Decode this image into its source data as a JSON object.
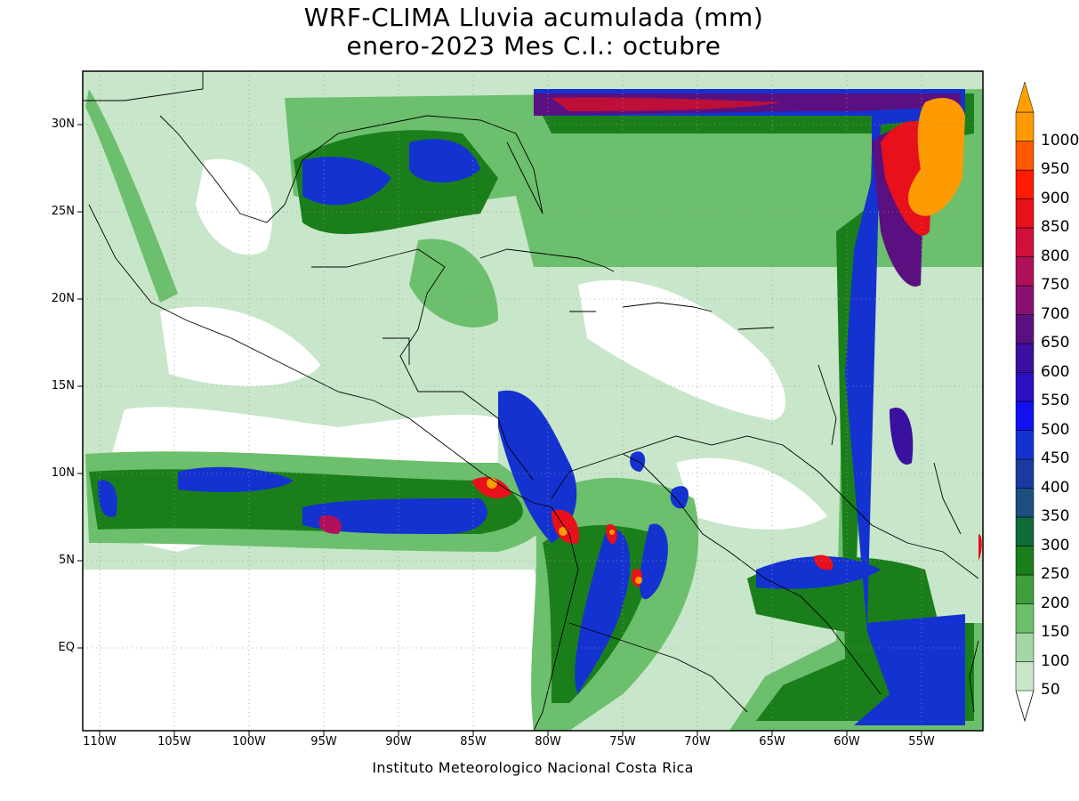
{
  "title": {
    "line1": "WRF-CLIMA Lluvia acumulada (mm)",
    "line2": "enero-2023 Mes C.I.: octubre"
  },
  "footer": "Instituto Meteorologico Nacional Costa Rica",
  "map": {
    "lat_labels": [
      "30N",
      "25N",
      "20N",
      "15N",
      "10N",
      "5N",
      "EQ"
    ],
    "lon_labels": [
      "110W",
      "105W",
      "100W",
      "95W",
      "90W",
      "85W",
      "80W",
      "75W",
      "70W",
      "65W",
      "60W",
      "55W"
    ]
  },
  "colorbar": {
    "labels": [
      "50",
      "100",
      "150",
      "200",
      "250",
      "300",
      "350",
      "400",
      "450",
      "500",
      "550",
      "600",
      "650",
      "700",
      "750",
      "800",
      "850",
      "900",
      "950",
      "1000"
    ],
    "colors": [
      "#c8e6c9",
      "#a5d6a7",
      "#6cbf6c",
      "#3f9f3f",
      "#1a7f1a",
      "#0f6b3a",
      "#1a4f7f",
      "#1a3aa0",
      "#1432d0",
      "#1010f0",
      "#2a10c0",
      "#3a10a0",
      "#5a1080",
      "#8a1070",
      "#b0105a",
      "#d0103a",
      "#e8101a",
      "#ff1a00",
      "#ff5a00",
      "#ff9a00"
    ]
  }
}
